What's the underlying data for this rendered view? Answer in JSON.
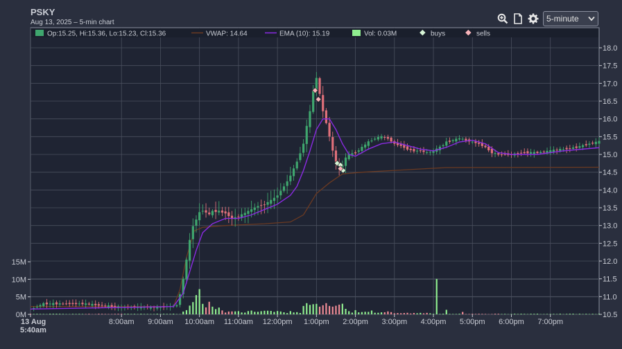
{
  "header": {
    "ticker": "PSKY",
    "subtitle": "Aug 13, 2025 – 5-min chart",
    "interval": "5-minute",
    "icons": [
      "zoom-icon",
      "document-icon",
      "gear-icon"
    ]
  },
  "colors": {
    "background": "#2a2f3e",
    "plot_bg": "#1f2433",
    "grid": "#4a4f5e",
    "up": "#3fa66e",
    "down": "#e0707a",
    "vwap": "#6b3a22",
    "ema": "#8a2be2",
    "volume_up": "#90ee90",
    "volume_down": "#f08c96",
    "buys": "#d7f5d7",
    "sells": "#f7b3b9"
  },
  "legend": [
    {
      "kind": "candle",
      "label": "Op:15.25, Hi:15.36, Lo:15.23, Cl:15.36"
    },
    {
      "kind": "vwap",
      "label": "VWAP: 14.64"
    },
    {
      "kind": "ema",
      "label": "EMA (10): 15.19"
    },
    {
      "kind": "volume",
      "label": "Vol: 0.03M"
    },
    {
      "kind": "buys",
      "label": "buys"
    },
    {
      "kind": "sells",
      "label": "sells"
    }
  ],
  "chart_data": {
    "type": "candlestick",
    "price_axis": {
      "min": 10.5,
      "max": 18.0,
      "ticks": [
        "18.0",
        "17.5",
        "17.0",
        "16.5",
        "16.0",
        "15.5",
        "15.0",
        "14.5",
        "14.0",
        "13.5",
        "13.0",
        "12.5",
        "12.0",
        "11.5",
        "11.0",
        "10.5"
      ]
    },
    "volume_axis": {
      "min": 0,
      "max": 15,
      "unit": "M",
      "ticks": [
        "15M",
        "10M",
        "5M",
        "0M"
      ]
    },
    "time_axis": {
      "start_minutes": 340,
      "end_minutes": 1215,
      "tick_labels": [
        "13 Aug 5:40am",
        "8:00am",
        "9:00am",
        "10:00am",
        "11:00am",
        "12:00pm",
        "1:00pm",
        "2:00pm",
        "3:00pm",
        "4:00pm",
        "5:00pm",
        "6:00pm",
        "7:00pm"
      ],
      "tick_minutes": [
        340,
        480,
        540,
        600,
        660,
        720,
        780,
        840,
        900,
        960,
        1020,
        1080,
        1140
      ]
    },
    "price_path": [
      [
        340,
        10.65
      ],
      [
        360,
        10.8
      ],
      [
        420,
        10.8
      ],
      [
        480,
        10.7
      ],
      [
        540,
        10.7
      ],
      [
        565,
        10.75
      ],
      [
        572,
        11.2
      ],
      [
        578,
        11.8
      ],
      [
        584,
        12.5
      ],
      [
        590,
        13.0
      ],
      [
        596,
        13.2
      ],
      [
        602,
        13.45
      ],
      [
        608,
        13.4
      ],
      [
        614,
        13.3
      ],
      [
        620,
        13.4
      ],
      [
        630,
        13.4
      ],
      [
        640,
        13.35
      ],
      [
        650,
        13.2
      ],
      [
        660,
        13.25
      ],
      [
        670,
        13.35
      ],
      [
        680,
        13.45
      ],
      [
        690,
        13.55
      ],
      [
        700,
        13.6
      ],
      [
        710,
        13.7
      ],
      [
        720,
        13.85
      ],
      [
        730,
        14.1
      ],
      [
        740,
        14.4
      ],
      [
        750,
        14.8
      ],
      [
        760,
        15.3
      ],
      [
        765,
        15.8
      ],
      [
        770,
        16.2
      ],
      [
        775,
        16.8
      ],
      [
        778,
        17.3
      ],
      [
        782,
        17.0
      ],
      [
        786,
        16.6
      ],
      [
        790,
        16.2
      ],
      [
        795,
        15.9
      ],
      [
        800,
        15.5
      ],
      [
        805,
        15.1
      ],
      [
        810,
        14.8
      ],
      [
        815,
        14.65
      ],
      [
        820,
        14.7
      ],
      [
        825,
        14.9
      ],
      [
        830,
        15.0
      ],
      [
        840,
        15.05
      ],
      [
        850,
        15.2
      ],
      [
        860,
        15.35
      ],
      [
        870,
        15.45
      ],
      [
        880,
        15.5
      ],
      [
        890,
        15.45
      ],
      [
        900,
        15.3
      ],
      [
        910,
        15.25
      ],
      [
        920,
        15.15
      ],
      [
        930,
        15.1
      ],
      [
        940,
        15.1
      ],
      [
        950,
        15.05
      ],
      [
        960,
        15.1
      ],
      [
        970,
        15.2
      ],
      [
        980,
        15.35
      ],
      [
        990,
        15.4
      ],
      [
        1000,
        15.45
      ],
      [
        1010,
        15.4
      ],
      [
        1020,
        15.35
      ],
      [
        1030,
        15.3
      ],
      [
        1040,
        15.2
      ],
      [
        1050,
        15.05
      ],
      [
        1060,
        15.0
      ],
      [
        1080,
        15.0
      ],
      [
        1100,
        15.05
      ],
      [
        1120,
        15.05
      ],
      [
        1140,
        15.1
      ],
      [
        1160,
        15.15
      ],
      [
        1180,
        15.2
      ],
      [
        1200,
        15.3
      ],
      [
        1215,
        15.36
      ]
    ],
    "vwap_path": [
      [
        340,
        10.72
      ],
      [
        560,
        10.72
      ],
      [
        570,
        11.2
      ],
      [
        580,
        12.1
      ],
      [
        592,
        12.85
      ],
      [
        605,
        12.95
      ],
      [
        640,
        13.0
      ],
      [
        700,
        13.05
      ],
      [
        740,
        13.1
      ],
      [
        760,
        13.3
      ],
      [
        770,
        13.6
      ],
      [
        780,
        13.9
      ],
      [
        800,
        14.2
      ],
      [
        820,
        14.45
      ],
      [
        850,
        14.5
      ],
      [
        900,
        14.55
      ],
      [
        950,
        14.6
      ],
      [
        980,
        14.63
      ],
      [
        1215,
        14.64
      ]
    ],
    "ema_path": [
      [
        340,
        10.65
      ],
      [
        560,
        10.72
      ],
      [
        575,
        11.1
      ],
      [
        585,
        11.7
      ],
      [
        595,
        12.3
      ],
      [
        605,
        12.8
      ],
      [
        620,
        13.05
      ],
      [
        640,
        13.2
      ],
      [
        660,
        13.2
      ],
      [
        680,
        13.3
      ],
      [
        700,
        13.45
      ],
      [
        720,
        13.6
      ],
      [
        740,
        13.85
      ],
      [
        750,
        14.1
      ],
      [
        760,
        14.55
      ],
      [
        770,
        15.1
      ],
      [
        780,
        15.7
      ],
      [
        790,
        16.0
      ],
      [
        800,
        16.0
      ],
      [
        810,
        15.7
      ],
      [
        820,
        15.3
      ],
      [
        830,
        15.0
      ],
      [
        840,
        14.95
      ],
      [
        860,
        15.15
      ],
      [
        880,
        15.3
      ],
      [
        900,
        15.35
      ],
      [
        920,
        15.25
      ],
      [
        940,
        15.15
      ],
      [
        960,
        15.1
      ],
      [
        980,
        15.2
      ],
      [
        1000,
        15.35
      ],
      [
        1020,
        15.4
      ],
      [
        1040,
        15.3
      ],
      [
        1060,
        15.05
      ],
      [
        1080,
        15.0
      ],
      [
        1120,
        15.0
      ],
      [
        1160,
        15.1
      ],
      [
        1215,
        15.19
      ]
    ],
    "volume_spikes": [
      [
        575,
        0.8
      ],
      [
        580,
        1.2
      ],
      [
        585,
        2.5
      ],
      [
        590,
        3.5
      ],
      [
        595,
        5.5
      ],
      [
        600,
        7.2
      ],
      [
        605,
        3.0
      ],
      [
        610,
        2.0
      ],
      [
        615,
        3.6
      ],
      [
        620,
        2.2
      ],
      [
        625,
        1.5
      ],
      [
        760,
        2.4
      ],
      [
        765,
        3.2
      ],
      [
        770,
        2.7
      ],
      [
        775,
        2.9
      ],
      [
        780,
        3.0
      ],
      [
        785,
        2.2
      ],
      [
        790,
        2.6
      ],
      [
        795,
        3.2
      ],
      [
        800,
        2.4
      ],
      [
        840,
        1.2
      ],
      [
        965,
        10.1
      ],
      [
        980,
        1.3
      ],
      [
        1005,
        0.7
      ]
    ],
    "trades": {
      "buys": [
        [
          812,
          14.75
        ],
        [
          817,
          14.7
        ],
        [
          821,
          14.55
        ]
      ],
      "sells": [
        [
          778,
          16.8
        ],
        [
          783,
          16.55
        ],
        [
          817,
          14.6
        ]
      ]
    }
  }
}
